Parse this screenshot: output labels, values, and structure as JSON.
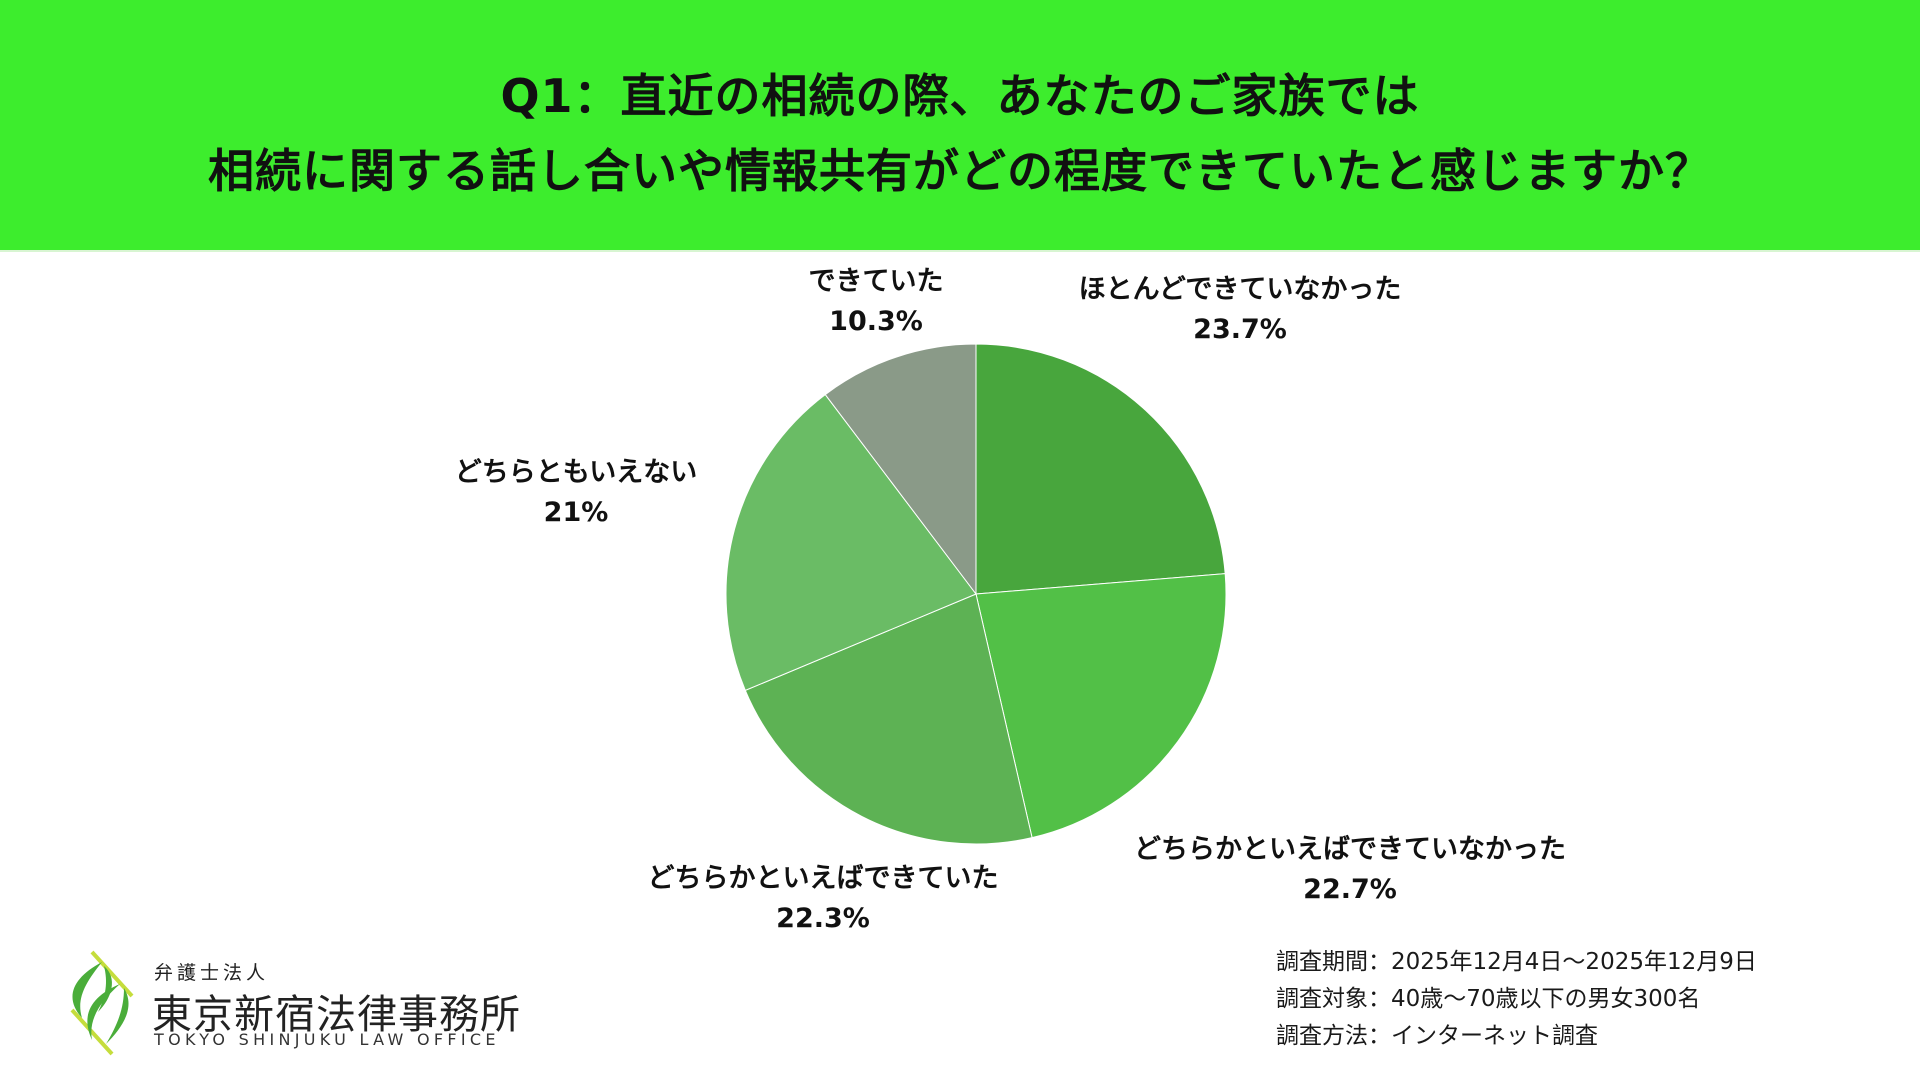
{
  "header": {
    "title_line1": "Q1：直近の相続の際、あなたのご家族では",
    "title_line2": "相続に関する話し合いや情報共有がどの程度できていたと感じますか？",
    "background": "#3ded2d"
  },
  "chart_data": {
    "type": "pie",
    "title": "Q1：直近の相続の際、あなたのご家族では相続に関する話し合いや情報共有がどの程度できていたと感じますか？",
    "start_angle": "12 o'clock, clockwise",
    "legend": "none (direct labels)",
    "categories": [
      "ほとんどできていなかった",
      "どちらかといえばできていなかった",
      "どちらかといえばできていた",
      "どちらともいえない",
      "できていた"
    ],
    "values": [
      23.7,
      22.7,
      22.3,
      21,
      10.3
    ],
    "value_labels": [
      "23.7%",
      "22.7%",
      "22.3%",
      "21%",
      "10.3%"
    ],
    "colors": [
      "#48a63d",
      "#52c047",
      "#5db254",
      "#6abc65",
      "#8a9a88"
    ]
  },
  "labels": [
    {
      "name": "ほとんどできていなかった",
      "value": "23.7%"
    },
    {
      "name": "どちらかといえばできていなかった",
      "value": "22.7%"
    },
    {
      "name": "どちらかといえばできていた",
      "value": "22.3%"
    },
    {
      "name": "どちらともいえない",
      "value": "21%"
    },
    {
      "name": "できていた",
      "value": "10.3%"
    }
  ],
  "survey": {
    "period": "調査期間：2025年12月4日～2025年12月9日",
    "target": "調査対象：40歳～70歳以下の男女300名",
    "method": "調査方法：インターネット調査"
  },
  "logo": {
    "subtitle": "弁護士法人",
    "name": "東京新宿法律事務所",
    "english": "TOKYO SHINJUKU LAW OFFICE"
  }
}
